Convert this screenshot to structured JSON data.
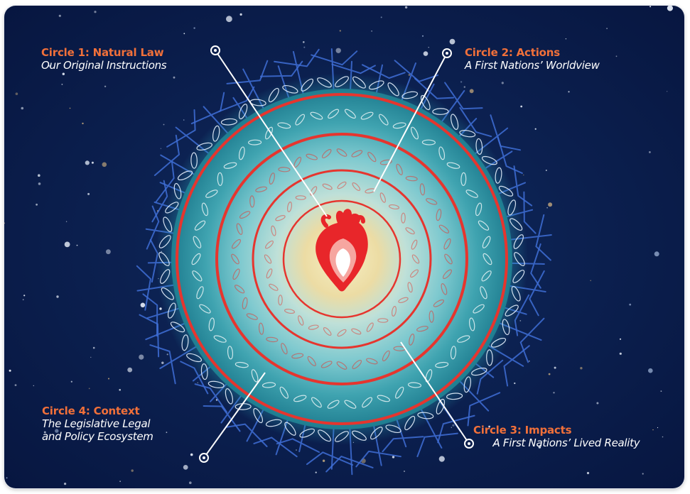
{
  "diagram": {
    "circles": [
      {
        "id": "circle-1",
        "title": "Circle 1: Natural Law",
        "subtitle": "Our Original Instructions"
      },
      {
        "id": "circle-2",
        "title": "Circle 2: Actions",
        "subtitle": "A First Nations’ Worldview"
      },
      {
        "id": "circle-3",
        "title": "Circle 3: Impacts",
        "subtitle": "A First Nations’ Lived Reality"
      },
      {
        "id": "circle-4",
        "title": "Circle 4: Context",
        "subtitle_line1": "The Legislative Legal",
        "subtitle_line2": "and Policy Ecosystem"
      }
    ],
    "colors": {
      "background": "#0b1f4e",
      "title_accent": "#f1703a",
      "ring_red": "#e6352e",
      "heart_red": "#e8262a",
      "roots_blue": "#3f6fd6",
      "leader_white": "#ffffff",
      "center_glow": "#f2e7b0",
      "outer_teal": "#2a8f9c"
    },
    "icons": [
      "heart-icon",
      "leaf-wreath",
      "root-branches",
      "star-field"
    ]
  }
}
